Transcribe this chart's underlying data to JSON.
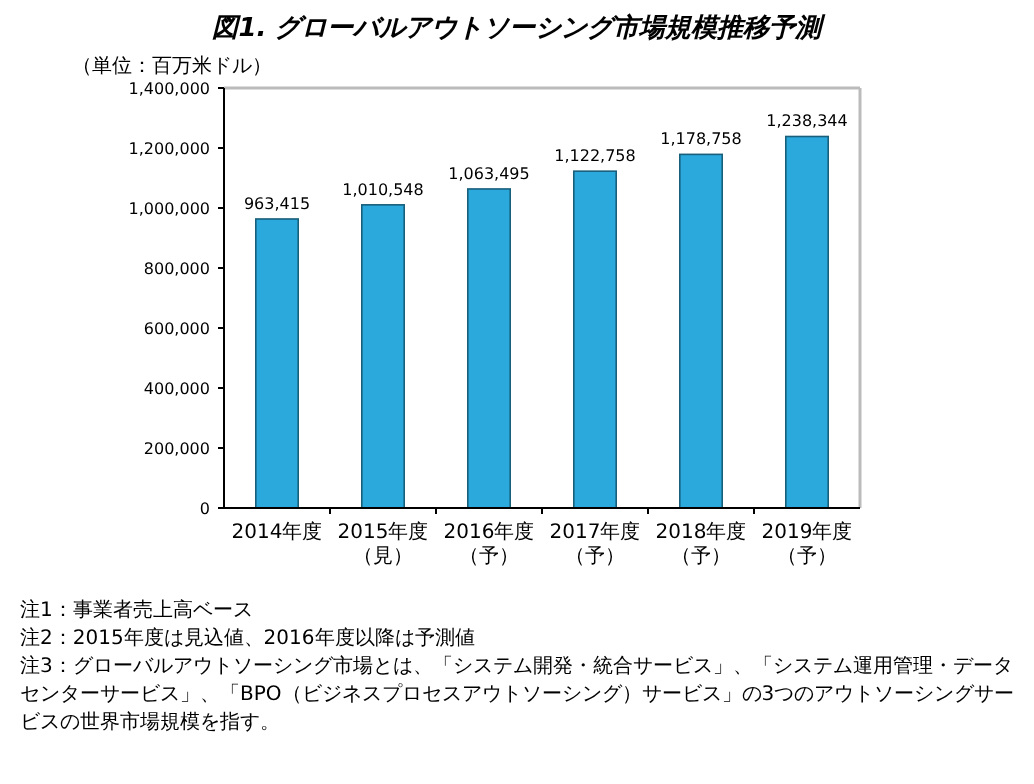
{
  "chart_data": {
    "type": "bar",
    "title": "図1. グローバルアウトソーシング市場規模推移予測",
    "ylabel": "（単位：百万米ドル）",
    "categories": [
      "2014年度",
      "2015年度（見）",
      "2016年度（予）",
      "2017年度（予）",
      "2018年度（予）",
      "2019年度（予）"
    ],
    "values": [
      963415,
      1010548,
      1063495,
      1122758,
      1178758,
      1238344
    ],
    "value_labels": [
      "963,415",
      "1,010,548",
      "1,063,495",
      "1,122,758",
      "1,178,758",
      "1,238,344"
    ],
    "color": "#2ba8dc",
    "ylim": [
      0,
      1400000
    ],
    "yticks": [
      {
        "value": 0,
        "label": "0"
      },
      {
        "value": 200000,
        "label": "200,000"
      },
      {
        "value": 400000,
        "label": "400,000"
      },
      {
        "value": 600000,
        "label": "600,000"
      },
      {
        "value": 800000,
        "label": "800,000"
      },
      {
        "value": 1000000,
        "label": "1,000,000"
      },
      {
        "value": 1200000,
        "label": "1,200,000"
      },
      {
        "value": 1400000,
        "label": "1,400,000"
      }
    ],
    "grid": false,
    "annotations": [
      "注1：事業者売上高ベース",
      "注2：2015年度は見込値、2016年度以降は予測値",
      "注3：グローバルアウトソーシング市場とは、「システム開発・統合サービス」、「システム運用管理・データセンターサービス」、「BPO（ビジネスプロセスアウトソーシング）サービス」の3つのアウトソーシングサービスの世界市場規模を指す。"
    ]
  }
}
